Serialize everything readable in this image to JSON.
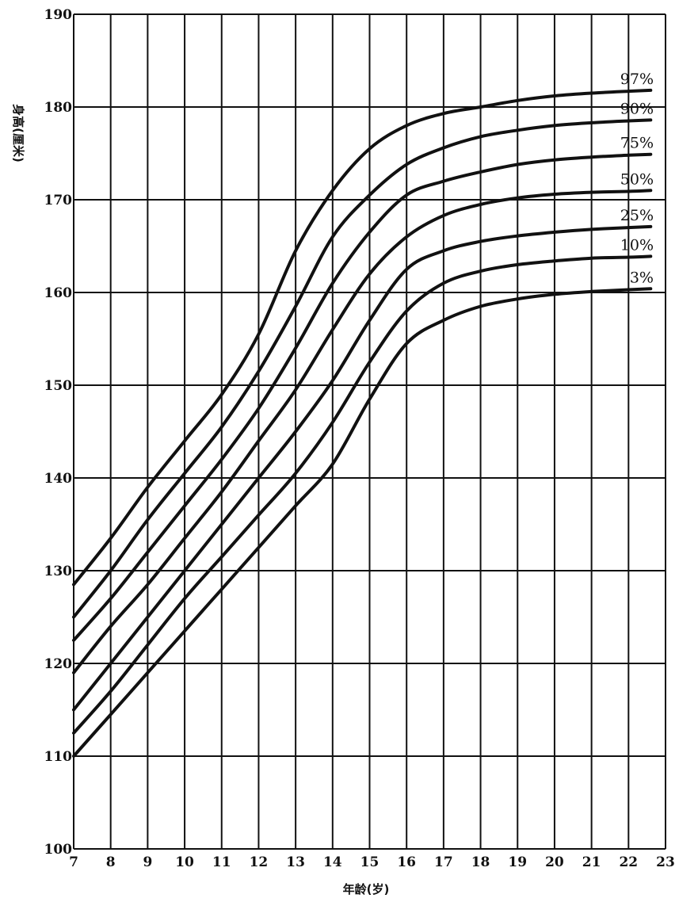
{
  "chart_data": {
    "type": "line",
    "xlabel": "年龄(岁)",
    "ylabel": "身高(厘米)",
    "xlim": [
      7,
      23
    ],
    "ylim": [
      100,
      190
    ],
    "x_ticks": [
      "7",
      "8",
      "9",
      "10",
      "11",
      "12",
      "13",
      "14",
      "15",
      "16",
      "17",
      "18",
      "19",
      "20",
      "21",
      "22",
      "23"
    ],
    "y_ticks": [
      "100",
      "110",
      "120",
      "130",
      "140",
      "150",
      "160",
      "170",
      "180",
      "190"
    ],
    "grid": true,
    "x": [
      7,
      8,
      9,
      10,
      11,
      12,
      13,
      14,
      15,
      16,
      17,
      18,
      19,
      20,
      21,
      22,
      22.6
    ],
    "series": [
      {
        "name": "97%",
        "values": [
          128.5,
          133.5,
          139.0,
          144.0,
          149.0,
          155.5,
          164.5,
          171.0,
          175.5,
          178.0,
          179.3,
          180.0,
          180.7,
          181.2,
          181.5,
          181.7,
          181.8
        ]
      },
      {
        "name": "90%",
        "values": [
          125.0,
          130.0,
          135.5,
          140.5,
          145.5,
          151.5,
          158.5,
          166.0,
          170.5,
          173.8,
          175.6,
          176.8,
          177.5,
          178.0,
          178.3,
          178.5,
          178.6
        ]
      },
      {
        "name": "75%",
        "values": [
          122.5,
          127.0,
          132.0,
          137.0,
          142.0,
          147.5,
          154.0,
          161.0,
          166.5,
          170.5,
          172.0,
          173.0,
          173.8,
          174.3,
          174.6,
          174.8,
          174.9
        ]
      },
      {
        "name": "50%",
        "values": [
          119.0,
          124.0,
          128.5,
          133.5,
          138.5,
          144.0,
          149.5,
          156.0,
          162.0,
          166.0,
          168.3,
          169.5,
          170.2,
          170.6,
          170.8,
          170.9,
          171.0
        ]
      },
      {
        "name": "25%",
        "values": [
          115.0,
          120.0,
          125.0,
          130.0,
          135.0,
          140.0,
          145.0,
          150.5,
          157.0,
          162.5,
          164.5,
          165.5,
          166.1,
          166.5,
          166.8,
          167.0,
          167.1
        ]
      },
      {
        "name": "10%",
        "values": [
          112.5,
          117.0,
          122.0,
          127.0,
          131.5,
          136.0,
          140.5,
          146.0,
          152.5,
          158.0,
          161.0,
          162.3,
          163.0,
          163.4,
          163.7,
          163.8,
          163.9
        ]
      },
      {
        "name": "3%",
        "values": [
          110.0,
          114.5,
          119.0,
          123.5,
          128.0,
          132.5,
          137.0,
          141.5,
          148.5,
          154.5,
          157.0,
          158.5,
          159.3,
          159.8,
          160.1,
          160.3,
          160.4
        ]
      }
    ]
  }
}
